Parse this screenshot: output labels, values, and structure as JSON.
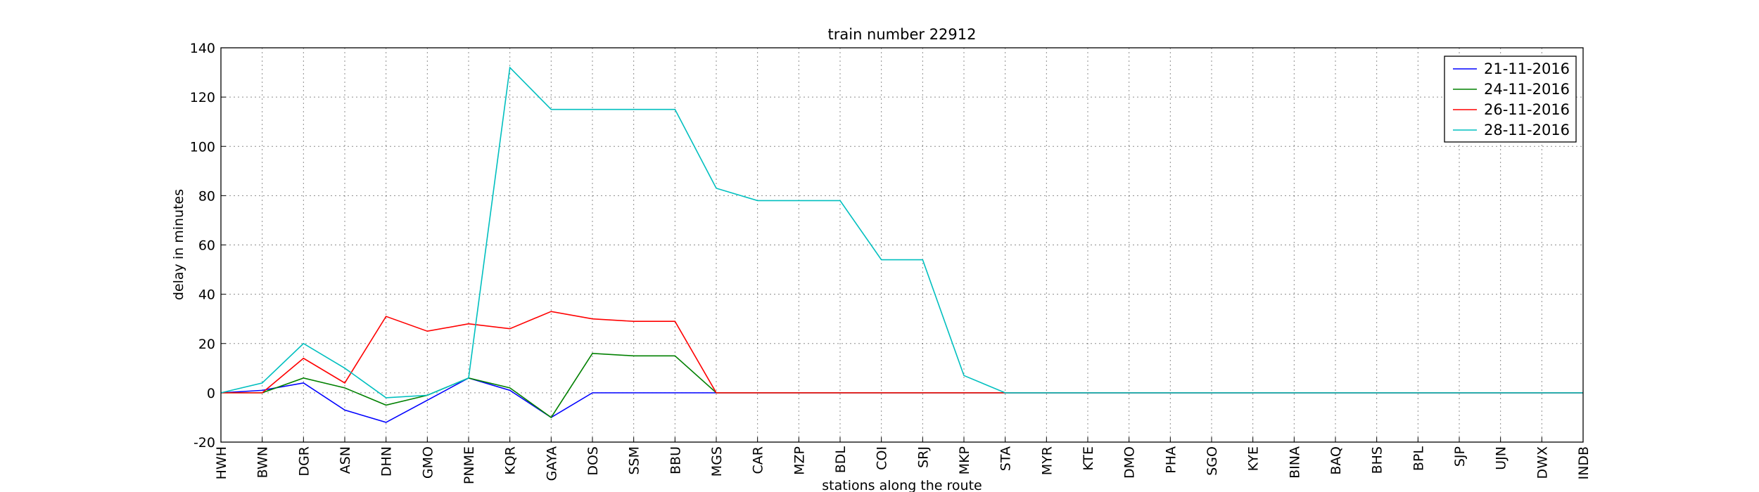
{
  "chart_data": {
    "type": "line",
    "title": "train number 22912",
    "x_label": "stations along the route",
    "y_label": "delay in minutes",
    "categories": [
      "HWH",
      "BWN",
      "DGR",
      "ASN",
      "DHN",
      "GMO",
      "PNME",
      "KQR",
      "GAYA",
      "DOS",
      "SSM",
      "BBU",
      "MGS",
      "CAR",
      "MZP",
      "BDL",
      "COI",
      "SRJ",
      "MKP",
      "STA",
      "MYR",
      "KTE",
      "DMO",
      "PHA",
      "SGO",
      "KYE",
      "BINA",
      "BAQ",
      "BHS",
      "BPL",
      "SJP",
      "UJN",
      "DWX",
      "INDB"
    ],
    "series": [
      {
        "name": "21-11-2016",
        "color": "#0000ff",
        "values": [
          0,
          1,
          4,
          -7,
          -12,
          -3,
          6,
          1,
          -10,
          0,
          0,
          0,
          0,
          0,
          0,
          0,
          0,
          0,
          0,
          0,
          0,
          0,
          0,
          0,
          0,
          0,
          0,
          0,
          0,
          0,
          0,
          0,
          0,
          0
        ]
      },
      {
        "name": "24-11-2016",
        "color": "#008000",
        "values": [
          0,
          0,
          6,
          2,
          -5,
          -1,
          6,
          2,
          -10,
          16,
          15,
          15,
          0,
          0,
          0,
          0,
          0,
          0,
          0,
          0,
          0,
          0,
          0,
          0,
          0,
          0,
          0,
          0,
          0,
          0,
          0,
          0,
          0,
          0
        ]
      },
      {
        "name": "26-11-2016",
        "color": "#ff0000",
        "values": [
          0,
          0,
          14,
          4,
          31,
          25,
          28,
          26,
          33,
          30,
          29,
          29,
          0,
          0,
          0,
          0,
          0,
          0,
          0,
          0,
          0,
          0,
          0,
          0,
          0,
          0,
          0,
          0,
          0,
          0,
          0,
          0,
          0,
          0
        ]
      },
      {
        "name": "28-11-2016",
        "color": "#00bfbf",
        "values": [
          0,
          4,
          20,
          10,
          -2,
          -1,
          6,
          132,
          115,
          115,
          115,
          115,
          83,
          78,
          78,
          78,
          54,
          54,
          7,
          0,
          0,
          0,
          0,
          0,
          0,
          0,
          0,
          0,
          0,
          0,
          0,
          0,
          0,
          0
        ]
      }
    ],
    "ylim": [
      -20,
      140
    ],
    "yticks": [
      -20,
      0,
      20,
      40,
      60,
      80,
      100,
      120,
      140
    ],
    "grid": true,
    "legend": "upper right"
  }
}
